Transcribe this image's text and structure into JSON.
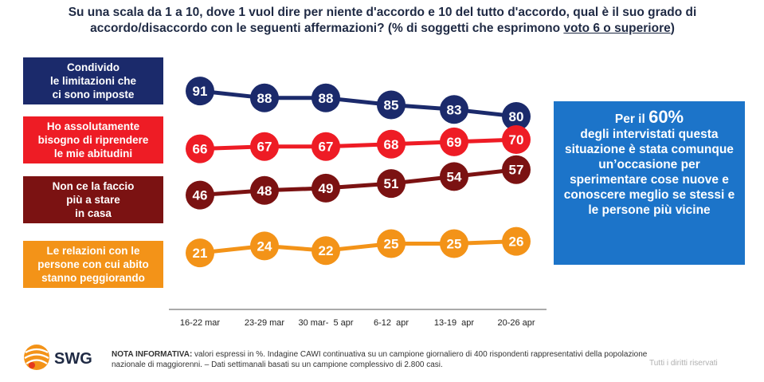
{
  "title": {
    "part1": "Su una scala da 1 a 10, dove 1 vuol dire per niente d'accordo e 10 del tutto d'accordo, qual è il suo grado di accordo/disaccordo con le seguenti affermazioni? ",
    "part2": "(% di soggetti che esprimono ",
    "part3": "voto 6 o superiore",
    "part4": ")"
  },
  "series_labels": [
    "Condivido\nle limitazioni che\nci sono imposte",
    "Ho assolutamente\nbisogno di riprendere\nle mie abitudini",
    "Non ce la faccio\npiù a stare\nin casa",
    "Le relazioni con le\npersone con cui abito\nstanno peggiorando"
  ],
  "colors": [
    "#1b2a6b",
    "#ee1c25",
    "#7b1212",
    "#f39318"
  ],
  "chart_data": {
    "type": "line",
    "x": [
      "16-22 mar",
      "23-29 mar",
      "30 mar-  5 apr",
      "6-12  apr",
      "13-19  apr",
      "20-26 apr"
    ],
    "series": [
      {
        "name": "Condivido le limitazioni che ci sono imposte",
        "values": [
          91,
          88,
          88,
          85,
          83,
          80
        ]
      },
      {
        "name": "Ho assolutamente bisogno di riprendere le mie abitudini",
        "values": [
          66,
          67,
          67,
          68,
          69,
          70
        ]
      },
      {
        "name": "Non ce la faccio più a stare in casa",
        "values": [
          46,
          48,
          49,
          51,
          54,
          57
        ]
      },
      {
        "name": "Le relazioni con le persone con cui abito stanno peggiorando",
        "values": [
          21,
          24,
          22,
          25,
          25,
          26
        ]
      }
    ]
  },
  "callout": {
    "pre": "Per il ",
    "highlight": "60%",
    "body": "degli intervistati questa situazione è stata comunque un’occasione per sperimentare cose nuove e conoscere meglio se stessi e le persone più vicine"
  },
  "logo_text": "SWG",
  "note": {
    "label": "NOTA INFORMATIVA:",
    "text": " valori espressi in %. Indagine CAWI continuativa su un campione giornaliero di 400 rispondenti rappresentativi della popolazione nazionale di maggiorenni. – Dati settimanali basati su un campione complessivo di 2.800 casi."
  },
  "rights": "Tutti i diritti riservati"
}
